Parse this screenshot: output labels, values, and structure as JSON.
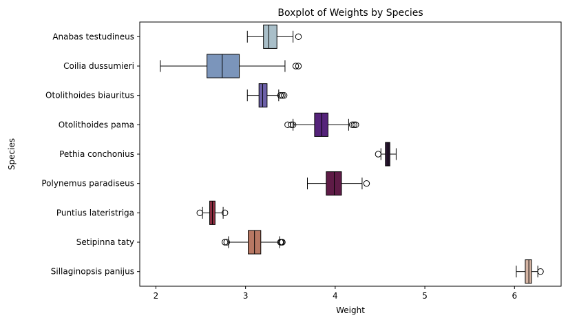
{
  "chart_data": {
    "type": "boxplot",
    "orientation": "horizontal",
    "title": "Boxplot of Weights by Species",
    "xlabel": "Weight",
    "ylabel": "Species",
    "xlim": [
      1.82,
      6.52
    ],
    "xticks": [
      2,
      3,
      4,
      5,
      6
    ],
    "grid": false,
    "series": [
      {
        "name": "Anabas testudineus",
        "color": "#a9bfc9",
        "whisker_low": 3.02,
        "q1": 3.2,
        "median": 3.26,
        "q3": 3.35,
        "whisker_high": 3.53,
        "outliers": [
          3.59
        ]
      },
      {
        "name": "Coilia dussumieri",
        "color": "#7b95bb",
        "whisker_low": 2.05,
        "q1": 2.57,
        "median": 2.74,
        "q3": 2.93,
        "whisker_high": 3.44,
        "outliers": [
          3.56,
          3.59
        ]
      },
      {
        "name": "Otolithoides biauritus",
        "color": "#6c60a8",
        "whisker_low": 3.02,
        "q1": 3.15,
        "median": 3.19,
        "q3": 3.24,
        "whisker_high": 3.37,
        "outliers": [
          3.39,
          3.41,
          3.43
        ]
      },
      {
        "name": "Otolithoides pama",
        "color": "#55237a",
        "whisker_low": 3.53,
        "q1": 3.77,
        "median": 3.85,
        "q3": 3.92,
        "whisker_high": 4.15,
        "outliers": [
          3.47,
          3.51,
          3.53,
          4.19,
          4.21,
          4.23
        ]
      },
      {
        "name": "Pethia conchonius",
        "color": "#2a1733",
        "whisker_low": 4.51,
        "q1": 4.56,
        "median": 4.59,
        "q3": 4.61,
        "whisker_high": 4.68,
        "outliers": [
          4.48
        ]
      },
      {
        "name": "Polynemus paradiseus",
        "color": "#5e1b46",
        "whisker_low": 3.69,
        "q1": 3.9,
        "median": 3.99,
        "q3": 4.07,
        "whisker_high": 4.3,
        "outliers": [
          4.35
        ]
      },
      {
        "name": "Puntius lateristriga",
        "color": "#8c2d40",
        "whisker_low": 2.52,
        "q1": 2.6,
        "median": 2.63,
        "q3": 2.66,
        "whisker_high": 2.75,
        "outliers": [
          2.49,
          2.77
        ]
      },
      {
        "name": "Setipinna taty",
        "color": "#b77763",
        "whisker_low": 2.81,
        "q1": 3.03,
        "median": 3.1,
        "q3": 3.17,
        "whisker_high": 3.38,
        "outliers": [
          2.77,
          2.79,
          3.39,
          3.4,
          3.41
        ]
      },
      {
        "name": "Sillaginopsis panijus",
        "color": "#d5b4a3",
        "whisker_low": 6.02,
        "q1": 6.12,
        "median": 6.16,
        "q3": 6.19,
        "whisker_high": 6.26,
        "outliers": [
          6.29
        ]
      }
    ]
  }
}
